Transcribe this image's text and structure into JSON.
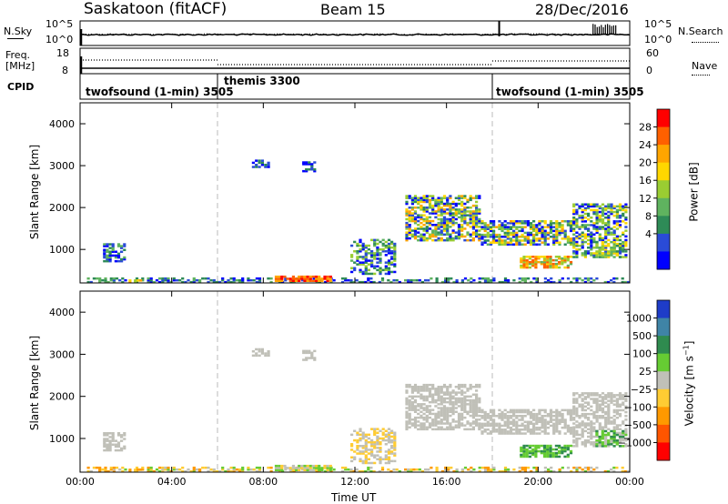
{
  "header": {
    "title": "Saskatoon (fitACF)",
    "beam": "Beam 15",
    "date": "28/Dec/2016"
  },
  "noise_panel": {
    "left_label": "N.Sky",
    "right_label": "N.Search",
    "left_ticks": [
      "10^5",
      "10^0"
    ],
    "right_ticks": [
      "10^5",
      "10^0"
    ]
  },
  "freq_panel": {
    "left_label_1": "Freq.",
    "left_label_2": "[MHz]",
    "left_ticks": [
      "18",
      "8"
    ],
    "right_label": "Nave",
    "right_ticks": [
      "60",
      "0"
    ]
  },
  "cpid_panel": {
    "label": "CPID",
    "segments": [
      {
        "name": "twofsound (1-min) 3505",
        "start_hour": 0
      },
      {
        "name": "themis 3300",
        "start_hour": 6
      },
      {
        "name": "twofsound (1-min) 3505",
        "start_hour": 18
      }
    ]
  },
  "chart_data": [
    {
      "type": "heatmap",
      "name": "power",
      "ylabel": "Slant Range [km]",
      "ylim": [
        200,
        4500
      ],
      "yticks": [
        "4000",
        "3000",
        "2000",
        "1000"
      ],
      "colorbar_label": "Power [dB]",
      "colorbar_ticks": [
        "28",
        "24",
        "20",
        "16",
        "12",
        "8",
        "4"
      ],
      "colors": [
        "#0000ff",
        "#2a4bd7",
        "#2e8b57",
        "#5fb35f",
        "#9acd32",
        "#ffd700",
        "#ffa500",
        "#ff6000",
        "#ff0000"
      ]
    },
    {
      "type": "heatmap",
      "name": "velocity",
      "ylabel": "Slant Range [km]",
      "ylim": [
        200,
        4500
      ],
      "yticks": [
        "4000",
        "3000",
        "2000",
        "1000"
      ],
      "colorbar_label": "Velocity [m s^-1]",
      "colorbar_ticks": [
        "1000",
        "500",
        "100",
        "25",
        "−25",
        "−100",
        "−500",
        "−1000"
      ],
      "colors": [
        "#1e3cc8",
        "#3f84a6",
        "#2f8b4f",
        "#66cc33",
        "#c0c0b8",
        "#ffcc33",
        "#ff9900",
        "#ff5500",
        "#ff0000"
      ]
    }
  ],
  "x_axis": {
    "xlabel": "Time UT",
    "ticks": [
      "00:00",
      "04:00",
      "08:00",
      "12:00",
      "16:00",
      "20:00",
      "00:00"
    ]
  }
}
